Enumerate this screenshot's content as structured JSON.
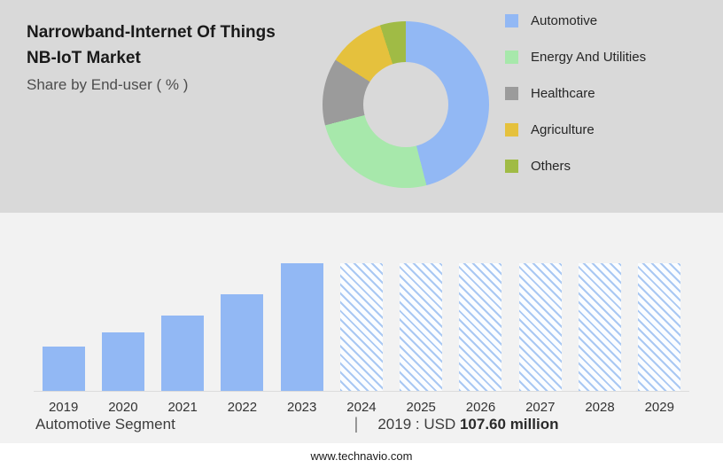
{
  "header": {
    "title_line1": "Narrowband-Internet Of Things",
    "title_line2": "NB-IoT Market",
    "subtitle": "Share by End-user ( % )"
  },
  "colors": {
    "top_background": "#d9d9d9",
    "bottom_background": "#f2f2f2",
    "bar_solid": "#92b8f4",
    "bar_hatch_line": "#a9c8f3",
    "automotive": "#92b8f4",
    "energy_and_utilities": "#a7e8ab",
    "healthcare": "#9b9b9b",
    "agriculture": "#e5c13d",
    "others": "#a0bb45"
  },
  "chart_data": [
    {
      "type": "pie",
      "title": "Share by End-user ( % )",
      "labels": [
        "Automotive",
        "Energy And Utilities",
        "Healthcare",
        "Agriculture",
        "Others"
      ],
      "values": [
        46,
        25,
        13,
        11,
        5
      ],
      "colors": [
        "#92b8f4",
        "#a7e8ab",
        "#9b9b9b",
        "#e5c13d",
        "#a0bb45"
      ],
      "donut": true,
      "start_angle_deg": 0,
      "legend_position": "right"
    },
    {
      "type": "bar",
      "categories": [
        "2019",
        "2020",
        "2021",
        "2022",
        "2023",
        "2024",
        "2025",
        "2026",
        "2027",
        "2028",
        "2029"
      ],
      "relative_heights": [
        35,
        46,
        59,
        76,
        100,
        100,
        100,
        100,
        100,
        100,
        100
      ],
      "forecast": [
        false,
        false,
        false,
        false,
        false,
        true,
        true,
        true,
        true,
        true,
        true
      ],
      "title": "Automotive Segment",
      "xlabel": "",
      "ylabel": "",
      "annotation": "2019 : USD 107.60 million",
      "note": "Y-axis values not labeled; 2024-2029 bars shown as hatched forecast at full height"
    }
  ],
  "footer": {
    "segment_label": "Automotive Segment",
    "separator": "|",
    "value_prefix": "2019 : USD",
    "value_bold": "107.60 million",
    "website": "www.technavio.com"
  }
}
